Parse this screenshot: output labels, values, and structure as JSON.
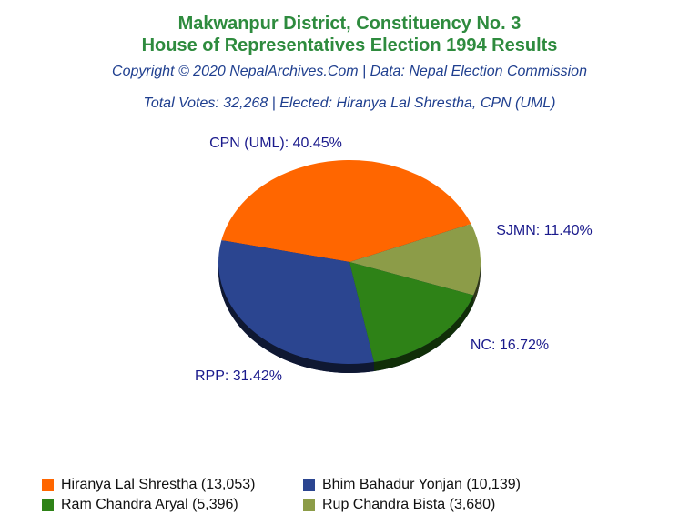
{
  "header": {
    "title_line1": "Makwanpur District, Constituency No. 3",
    "title_line2": "House of Representatives Election 1994 Results",
    "copyright": "Copyright © 2020 NepalArchives.Com | Data: Nepal Election Commission",
    "summary": "Total Votes: 32,268 | Elected: Hiranya Lal Shrestha, CPN (UML)"
  },
  "chart_data": {
    "type": "pie",
    "title": "Makwanpur District, Constituency No. 3 House of Representatives Election 1994 Results",
    "slices": [
      {
        "party": "CPN (UML)",
        "label": "CPN (UML): 40.45%",
        "percent": 40.45,
        "candidate": "Hiranya Lal Shrestha (13,053)",
        "votes": 13053,
        "color": "#ff6600"
      },
      {
        "party": "RPP",
        "label": "RPP: 31.42%",
        "percent": 31.42,
        "candidate": "Bhim Bahadur Yonjan (10,139)",
        "votes": 10139,
        "color": "#2b4590"
      },
      {
        "party": "NC",
        "label": "NC: 16.72%",
        "percent": 16.72,
        "candidate": "Ram Chandra Aryal (5,396)",
        "votes": 5396,
        "color": "#2e8217"
      },
      {
        "party": "SJMN",
        "label": "SJMN: 11.40%",
        "percent": 11.4,
        "candidate": "Rup Chandra Bista (3,680)",
        "votes": 3680,
        "color": "#8c9c48"
      }
    ],
    "legend_placement": "bottom"
  }
}
